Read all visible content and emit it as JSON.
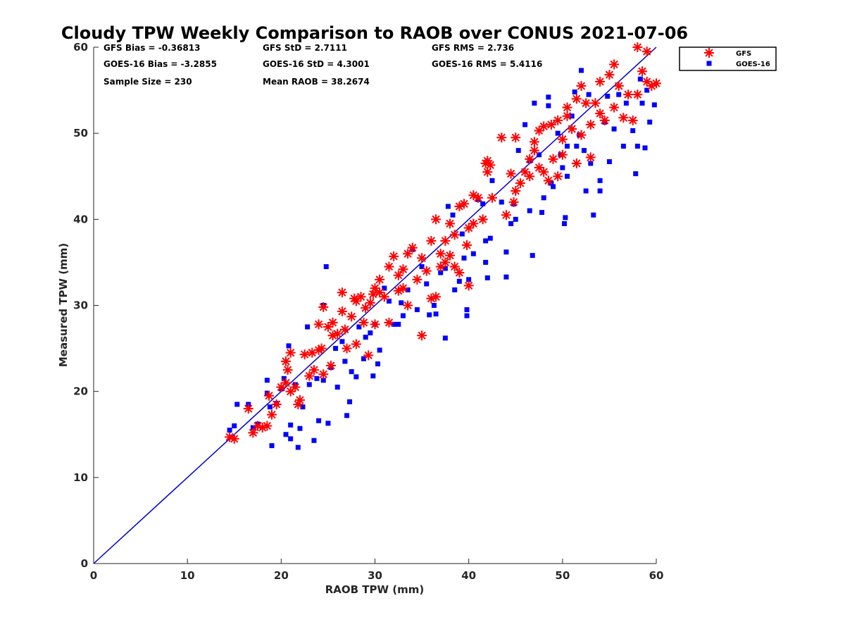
{
  "chart_data": {
    "type": "scatter",
    "title": "Cloudy TPW Weekly Comparison to RAOB over CONUS 2021-07-06",
    "xlabel": "RAOB TPW (mm)",
    "ylabel": "Measured TPW (mm)",
    "xlim": [
      0,
      60
    ],
    "ylim": [
      0,
      60
    ],
    "xticks": [
      "0",
      "10",
      "20",
      "30",
      "40",
      "50",
      "60"
    ],
    "yticks": [
      "0",
      "10",
      "20",
      "30",
      "40",
      "50",
      "60"
    ],
    "grid": false,
    "legend_position": "top-right outside",
    "reference_line": {
      "x": [
        0,
        60
      ],
      "y": [
        0,
        60
      ],
      "color": "#0000cc"
    },
    "stats": {
      "gfs_bias": "GFS Bias = -0.36813",
      "gfs_std": "GFS StD = 2.7111",
      "gfs_rms": "GFS RMS = 2.736",
      "goes_bias": "GOES-16 Bias = -3.2855",
      "goes_std": "GOES-16 StD = 4.3001",
      "goes_rms": "GOES-16 RMS = 5.4116",
      "sample_size": "Sample Size = 230",
      "mean_raob": "Mean RAOB = 38.2674"
    },
    "series": [
      {
        "name": "GFS",
        "marker": "asterisk",
        "color": "#ff0000",
        "points": [
          [
            14.5,
            14.7
          ],
          [
            15.0,
            14.5
          ],
          [
            16.5,
            18.0
          ],
          [
            17.0,
            15.2
          ],
          [
            17.5,
            16.0
          ],
          [
            18.0,
            15.8
          ],
          [
            18.5,
            16.0
          ],
          [
            18.7,
            19.5
          ],
          [
            19.0,
            17.3
          ],
          [
            19.5,
            18.5
          ],
          [
            20.0,
            20.5
          ],
          [
            20.5,
            21.0
          ],
          [
            20.5,
            23.5
          ],
          [
            20.7,
            22.5
          ],
          [
            21.0,
            24.5
          ],
          [
            21.0,
            20.0
          ],
          [
            21.5,
            20.5
          ],
          [
            21.8,
            18.5
          ],
          [
            22.0,
            19.0
          ],
          [
            22.5,
            24.3
          ],
          [
            23.0,
            21.8
          ],
          [
            23.3,
            24.5
          ],
          [
            23.5,
            22.5
          ],
          [
            24.0,
            24.8
          ],
          [
            24.0,
            27.8
          ],
          [
            24.3,
            25.0
          ],
          [
            24.5,
            22.0
          ],
          [
            24.5,
            29.8
          ],
          [
            25.0,
            27.5
          ],
          [
            25.3,
            23.0
          ],
          [
            25.5,
            26.5
          ],
          [
            25.5,
            28.0
          ],
          [
            26.0,
            26.7
          ],
          [
            26.5,
            29.3
          ],
          [
            26.5,
            31.5
          ],
          [
            26.8,
            27.2
          ],
          [
            27.0,
            25.0
          ],
          [
            27.5,
            28.7
          ],
          [
            27.8,
            30.8
          ],
          [
            28.0,
            25.5
          ],
          [
            28.0,
            30.5
          ],
          [
            28.5,
            31.0
          ],
          [
            28.8,
            28.0
          ],
          [
            29.0,
            29.7
          ],
          [
            29.3,
            24.2
          ],
          [
            29.5,
            30.3
          ],
          [
            29.8,
            31.3
          ],
          [
            30.0,
            27.8
          ],
          [
            30.0,
            32.0
          ],
          [
            30.5,
            33.0
          ],
          [
            30.5,
            31.5
          ],
          [
            31.0,
            31.0
          ],
          [
            31.5,
            34.5
          ],
          [
            31.5,
            28.0
          ],
          [
            32.0,
            35.7
          ],
          [
            32.5,
            31.7
          ],
          [
            32.5,
            33.5
          ],
          [
            33.0,
            34.2
          ],
          [
            33.0,
            32.0
          ],
          [
            33.5,
            36.0
          ],
          [
            33.5,
            30.0
          ],
          [
            34.0,
            36.7
          ],
          [
            34.5,
            33.0
          ],
          [
            35.0,
            26.5
          ],
          [
            35.0,
            35.5
          ],
          [
            35.5,
            34.0
          ],
          [
            36.0,
            37.5
          ],
          [
            36.0,
            30.8
          ],
          [
            36.5,
            31.0
          ],
          [
            36.5,
            40.0
          ],
          [
            37.0,
            36.0
          ],
          [
            37.0,
            34.5
          ],
          [
            37.5,
            37.5
          ],
          [
            37.5,
            35.0
          ],
          [
            38.0,
            39.5
          ],
          [
            38.0,
            35.8
          ],
          [
            38.5,
            34.5
          ],
          [
            38.5,
            38.2
          ],
          [
            39.0,
            41.5
          ],
          [
            39.0,
            33.8
          ],
          [
            39.5,
            41.8
          ],
          [
            39.8,
            37.0
          ],
          [
            40.0,
            32.3
          ],
          [
            40.0,
            39.0
          ],
          [
            40.5,
            42.8
          ],
          [
            40.5,
            39.5
          ],
          [
            41.0,
            42.5
          ],
          [
            41.5,
            40.0
          ],
          [
            41.8,
            46.5
          ],
          [
            42.0,
            46.8
          ],
          [
            42.0,
            45.5
          ],
          [
            42.3,
            46.3
          ],
          [
            42.5,
            42.5
          ],
          [
            43.5,
            49.5
          ],
          [
            44.0,
            40.5
          ],
          [
            44.5,
            45.3
          ],
          [
            44.8,
            42.0
          ],
          [
            45.0,
            49.5
          ],
          [
            45.0,
            43.3
          ],
          [
            45.5,
            44.2
          ],
          [
            46.0,
            45.5
          ],
          [
            46.5,
            47.0
          ],
          [
            46.5,
            45.0
          ],
          [
            47.0,
            49.0
          ],
          [
            47.0,
            48.0
          ],
          [
            47.5,
            50.3
          ],
          [
            47.5,
            46.0
          ],
          [
            48.0,
            50.8
          ],
          [
            48.0,
            45.5
          ],
          [
            48.5,
            44.5
          ],
          [
            48.8,
            51.0
          ],
          [
            49.0,
            47.0
          ],
          [
            49.5,
            45.0
          ],
          [
            49.5,
            51.5
          ],
          [
            50.0,
            49.3
          ],
          [
            50.0,
            47.5
          ],
          [
            50.5,
            53.0
          ],
          [
            50.5,
            52.0
          ],
          [
            51.0,
            50.5
          ],
          [
            51.5,
            46.5
          ],
          [
            51.5,
            54.0
          ],
          [
            52.0,
            49.8
          ],
          [
            52.0,
            55.5
          ],
          [
            52.5,
            53.5
          ],
          [
            53.0,
            51.0
          ],
          [
            53.0,
            47.2
          ],
          [
            53.5,
            53.5
          ],
          [
            54.0,
            52.3
          ],
          [
            54.0,
            56.0
          ],
          [
            54.5,
            51.5
          ],
          [
            55.0,
            56.8
          ],
          [
            55.5,
            53.0
          ],
          [
            55.5,
            58.0
          ],
          [
            56.0,
            55.5
          ],
          [
            56.5,
            51.8
          ],
          [
            57.0,
            54.5
          ],
          [
            57.5,
            51.5
          ],
          [
            58.0,
            60.0
          ],
          [
            58.0,
            54.5
          ],
          [
            58.5,
            57.2
          ],
          [
            59.0,
            56.0
          ],
          [
            59.0,
            59.5
          ],
          [
            59.5,
            55.5
          ],
          [
            60.0,
            55.8
          ]
        ]
      },
      {
        "name": "GOES-16",
        "marker": "square",
        "color": "#0000ff",
        "points": [
          [
            14.5,
            15.5
          ],
          [
            15.0,
            16.0
          ],
          [
            15.3,
            18.5
          ],
          [
            16.5,
            18.5
          ],
          [
            17.0,
            15.8
          ],
          [
            17.5,
            16.2
          ],
          [
            18.5,
            21.3
          ],
          [
            18.5,
            19.8
          ],
          [
            18.8,
            18.2
          ],
          [
            19.0,
            13.7
          ],
          [
            19.5,
            18.6
          ],
          [
            20.0,
            20.3
          ],
          [
            20.3,
            21.5
          ],
          [
            20.5,
            15.0
          ],
          [
            20.8,
            25.3
          ],
          [
            21.0,
            16.1
          ],
          [
            21.0,
            14.5
          ],
          [
            21.5,
            20.8
          ],
          [
            21.8,
            13.5
          ],
          [
            22.0,
            15.7
          ],
          [
            22.3,
            18.2
          ],
          [
            22.8,
            27.5
          ],
          [
            23.0,
            20.8
          ],
          [
            23.5,
            14.3
          ],
          [
            23.8,
            21.5
          ],
          [
            24.0,
            16.6
          ],
          [
            24.5,
            30.0
          ],
          [
            24.5,
            21.3
          ],
          [
            24.8,
            34.5
          ],
          [
            25.0,
            16.3
          ],
          [
            25.3,
            22.8
          ],
          [
            25.8,
            25.0
          ],
          [
            26.0,
            20.5
          ],
          [
            26.5,
            25.8
          ],
          [
            26.8,
            23.5
          ],
          [
            27.0,
            17.2
          ],
          [
            27.3,
            18.8
          ],
          [
            27.5,
            22.3
          ],
          [
            28.0,
            21.7
          ],
          [
            28.3,
            27.5
          ],
          [
            28.8,
            23.8
          ],
          [
            29.0,
            26.3
          ],
          [
            29.5,
            26.8
          ],
          [
            29.8,
            21.8
          ],
          [
            30.0,
            27.8
          ],
          [
            30.3,
            23.2
          ],
          [
            30.5,
            24.8
          ],
          [
            31.0,
            32.0
          ],
          [
            31.5,
            30.5
          ],
          [
            32.0,
            27.8
          ],
          [
            32.5,
            27.8
          ],
          [
            32.8,
            30.3
          ],
          [
            33.0,
            28.8
          ],
          [
            33.5,
            31.8
          ],
          [
            34.0,
            36.5
          ],
          [
            34.5,
            29.5
          ],
          [
            35.0,
            34.5
          ],
          [
            35.5,
            32.5
          ],
          [
            35.8,
            28.9
          ],
          [
            36.3,
            30.0
          ],
          [
            36.5,
            29.0
          ],
          [
            37.0,
            33.8
          ],
          [
            37.5,
            34.3
          ],
          [
            37.5,
            26.2
          ],
          [
            37.8,
            41.5
          ],
          [
            38.3,
            40.5
          ],
          [
            38.5,
            31.8
          ],
          [
            39.0,
            32.8
          ],
          [
            39.3,
            38.3
          ],
          [
            39.5,
            35.5
          ],
          [
            39.8,
            28.8
          ],
          [
            39.8,
            29.5
          ],
          [
            40.0,
            33.0
          ],
          [
            40.5,
            36.0
          ],
          [
            41.0,
            42.3
          ],
          [
            41.5,
            41.8
          ],
          [
            41.8,
            37.5
          ],
          [
            41.8,
            35.0
          ],
          [
            42.0,
            33.2
          ],
          [
            42.3,
            37.8
          ],
          [
            42.5,
            44.5
          ],
          [
            43.5,
            42.0
          ],
          [
            44.0,
            33.3
          ],
          [
            44.0,
            36.2
          ],
          [
            44.5,
            39.5
          ],
          [
            44.8,
            41.8
          ],
          [
            45.0,
            40.0
          ],
          [
            45.3,
            48.0
          ],
          [
            46.0,
            51.0
          ],
          [
            46.5,
            46.8
          ],
          [
            46.5,
            41.0
          ],
          [
            46.8,
            35.8
          ],
          [
            47.0,
            53.5
          ],
          [
            47.5,
            47.5
          ],
          [
            47.8,
            40.8
          ],
          [
            48.0,
            42.5
          ],
          [
            48.5,
            54.2
          ],
          [
            48.5,
            53.2
          ],
          [
            48.8,
            44.2
          ],
          [
            49.0,
            43.8
          ],
          [
            49.5,
            50.0
          ],
          [
            49.8,
            47.5
          ],
          [
            50.0,
            46.0
          ],
          [
            50.2,
            39.5
          ],
          [
            50.3,
            40.2
          ],
          [
            50.5,
            48.5
          ],
          [
            50.5,
            45.0
          ],
          [
            51.0,
            52.0
          ],
          [
            51.3,
            54.8
          ],
          [
            51.5,
            48.5
          ],
          [
            51.8,
            49.8
          ],
          [
            52.0,
            57.3
          ],
          [
            52.3,
            48.0
          ],
          [
            52.5,
            43.3
          ],
          [
            52.8,
            54.5
          ],
          [
            53.0,
            46.5
          ],
          [
            53.3,
            40.5
          ],
          [
            54.0,
            44.5
          ],
          [
            54.0,
            43.3
          ],
          [
            54.5,
            51.3
          ],
          [
            54.8,
            54.3
          ],
          [
            55.0,
            46.7
          ],
          [
            55.5,
            50.5
          ],
          [
            56.0,
            54.5
          ],
          [
            56.5,
            48.5
          ],
          [
            56.8,
            53.5
          ],
          [
            57.5,
            50.3
          ],
          [
            57.8,
            45.3
          ],
          [
            58.0,
            48.5
          ],
          [
            58.3,
            56.3
          ],
          [
            58.5,
            53.5
          ],
          [
            58.8,
            48.3
          ],
          [
            59.0,
            55.0
          ],
          [
            59.3,
            51.3
          ],
          [
            59.8,
            53.3
          ]
        ]
      }
    ]
  }
}
